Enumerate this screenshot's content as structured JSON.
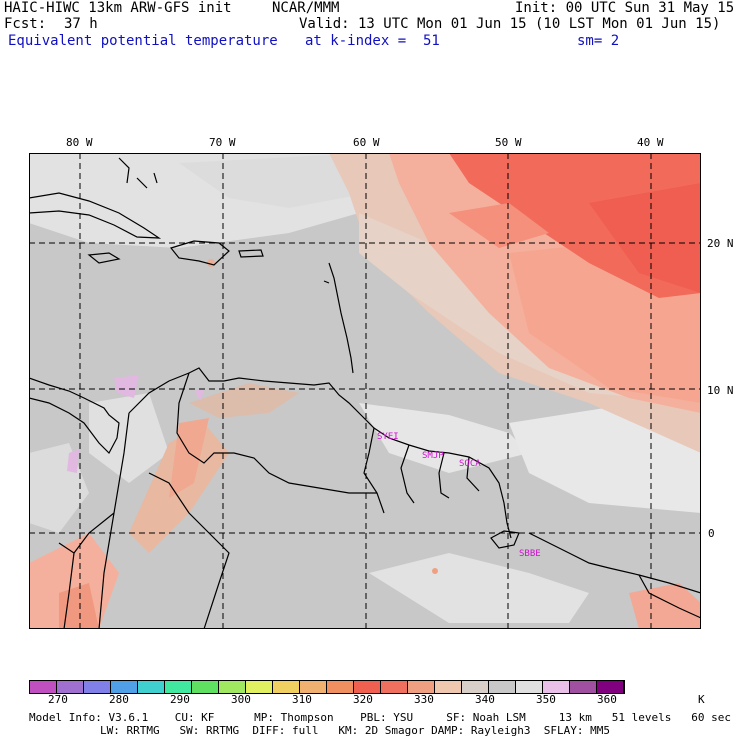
{
  "header": {
    "model": "HAIC-HIWC 13km ARW-GFS init",
    "center": "NCAR/MMM",
    "init": "Init: 00 UTC Sun 31 May 15",
    "fcst_label": "Fcst:",
    "fcst_value": "37 h",
    "valid": "Valid: 13 UTC Mon 01 Jun 15 (10 LST Mon 01 Jun 15)",
    "field": "Equivalent potential temperature",
    "level": "at k-index =  51",
    "smoothing": "sm= 2"
  },
  "map": {
    "lon_labels": [
      "80 W",
      "70 W",
      "60 W",
      "50 W",
      "40 W"
    ],
    "lat_labels": [
      "20 N",
      "10 N",
      "0"
    ],
    "stations": [
      "SYEI",
      "SMJP",
      "SOCA",
      "SBBE"
    ]
  },
  "colorbar": {
    "colors": [
      "#c050c0",
      "#a070d0",
      "#8080e8",
      "#50a0e8",
      "#40d0d0",
      "#40e8a0",
      "#60e060",
      "#a0e860",
      "#e0f060",
      "#f0d060",
      "#f0b070",
      "#f09060",
      "#f06050",
      "#f07060",
      "#f0a080",
      "#f0c8b0",
      "#d8d0c8",
      "#c8c8c8",
      "#e0e0e0",
      "#e8c0e8",
      "#a050a0",
      "#800080"
    ],
    "ticks": [
      "270",
      "280",
      "290",
      "300",
      "310",
      "320",
      "330",
      "340",
      "350",
      "360",
      "K"
    ]
  },
  "footer": {
    "line1": "Model Info: V3.6.1    CU: KF      MP: Thompson    PBL: YSU     SF: Noah LSM     13 km   51 levels   60 sec",
    "line2": "LW: RRTMG   SW: RRTMG  DIFF: full   KM: 2D Smagor DAMP: Rayleigh3  SFLAY: MM5"
  }
}
